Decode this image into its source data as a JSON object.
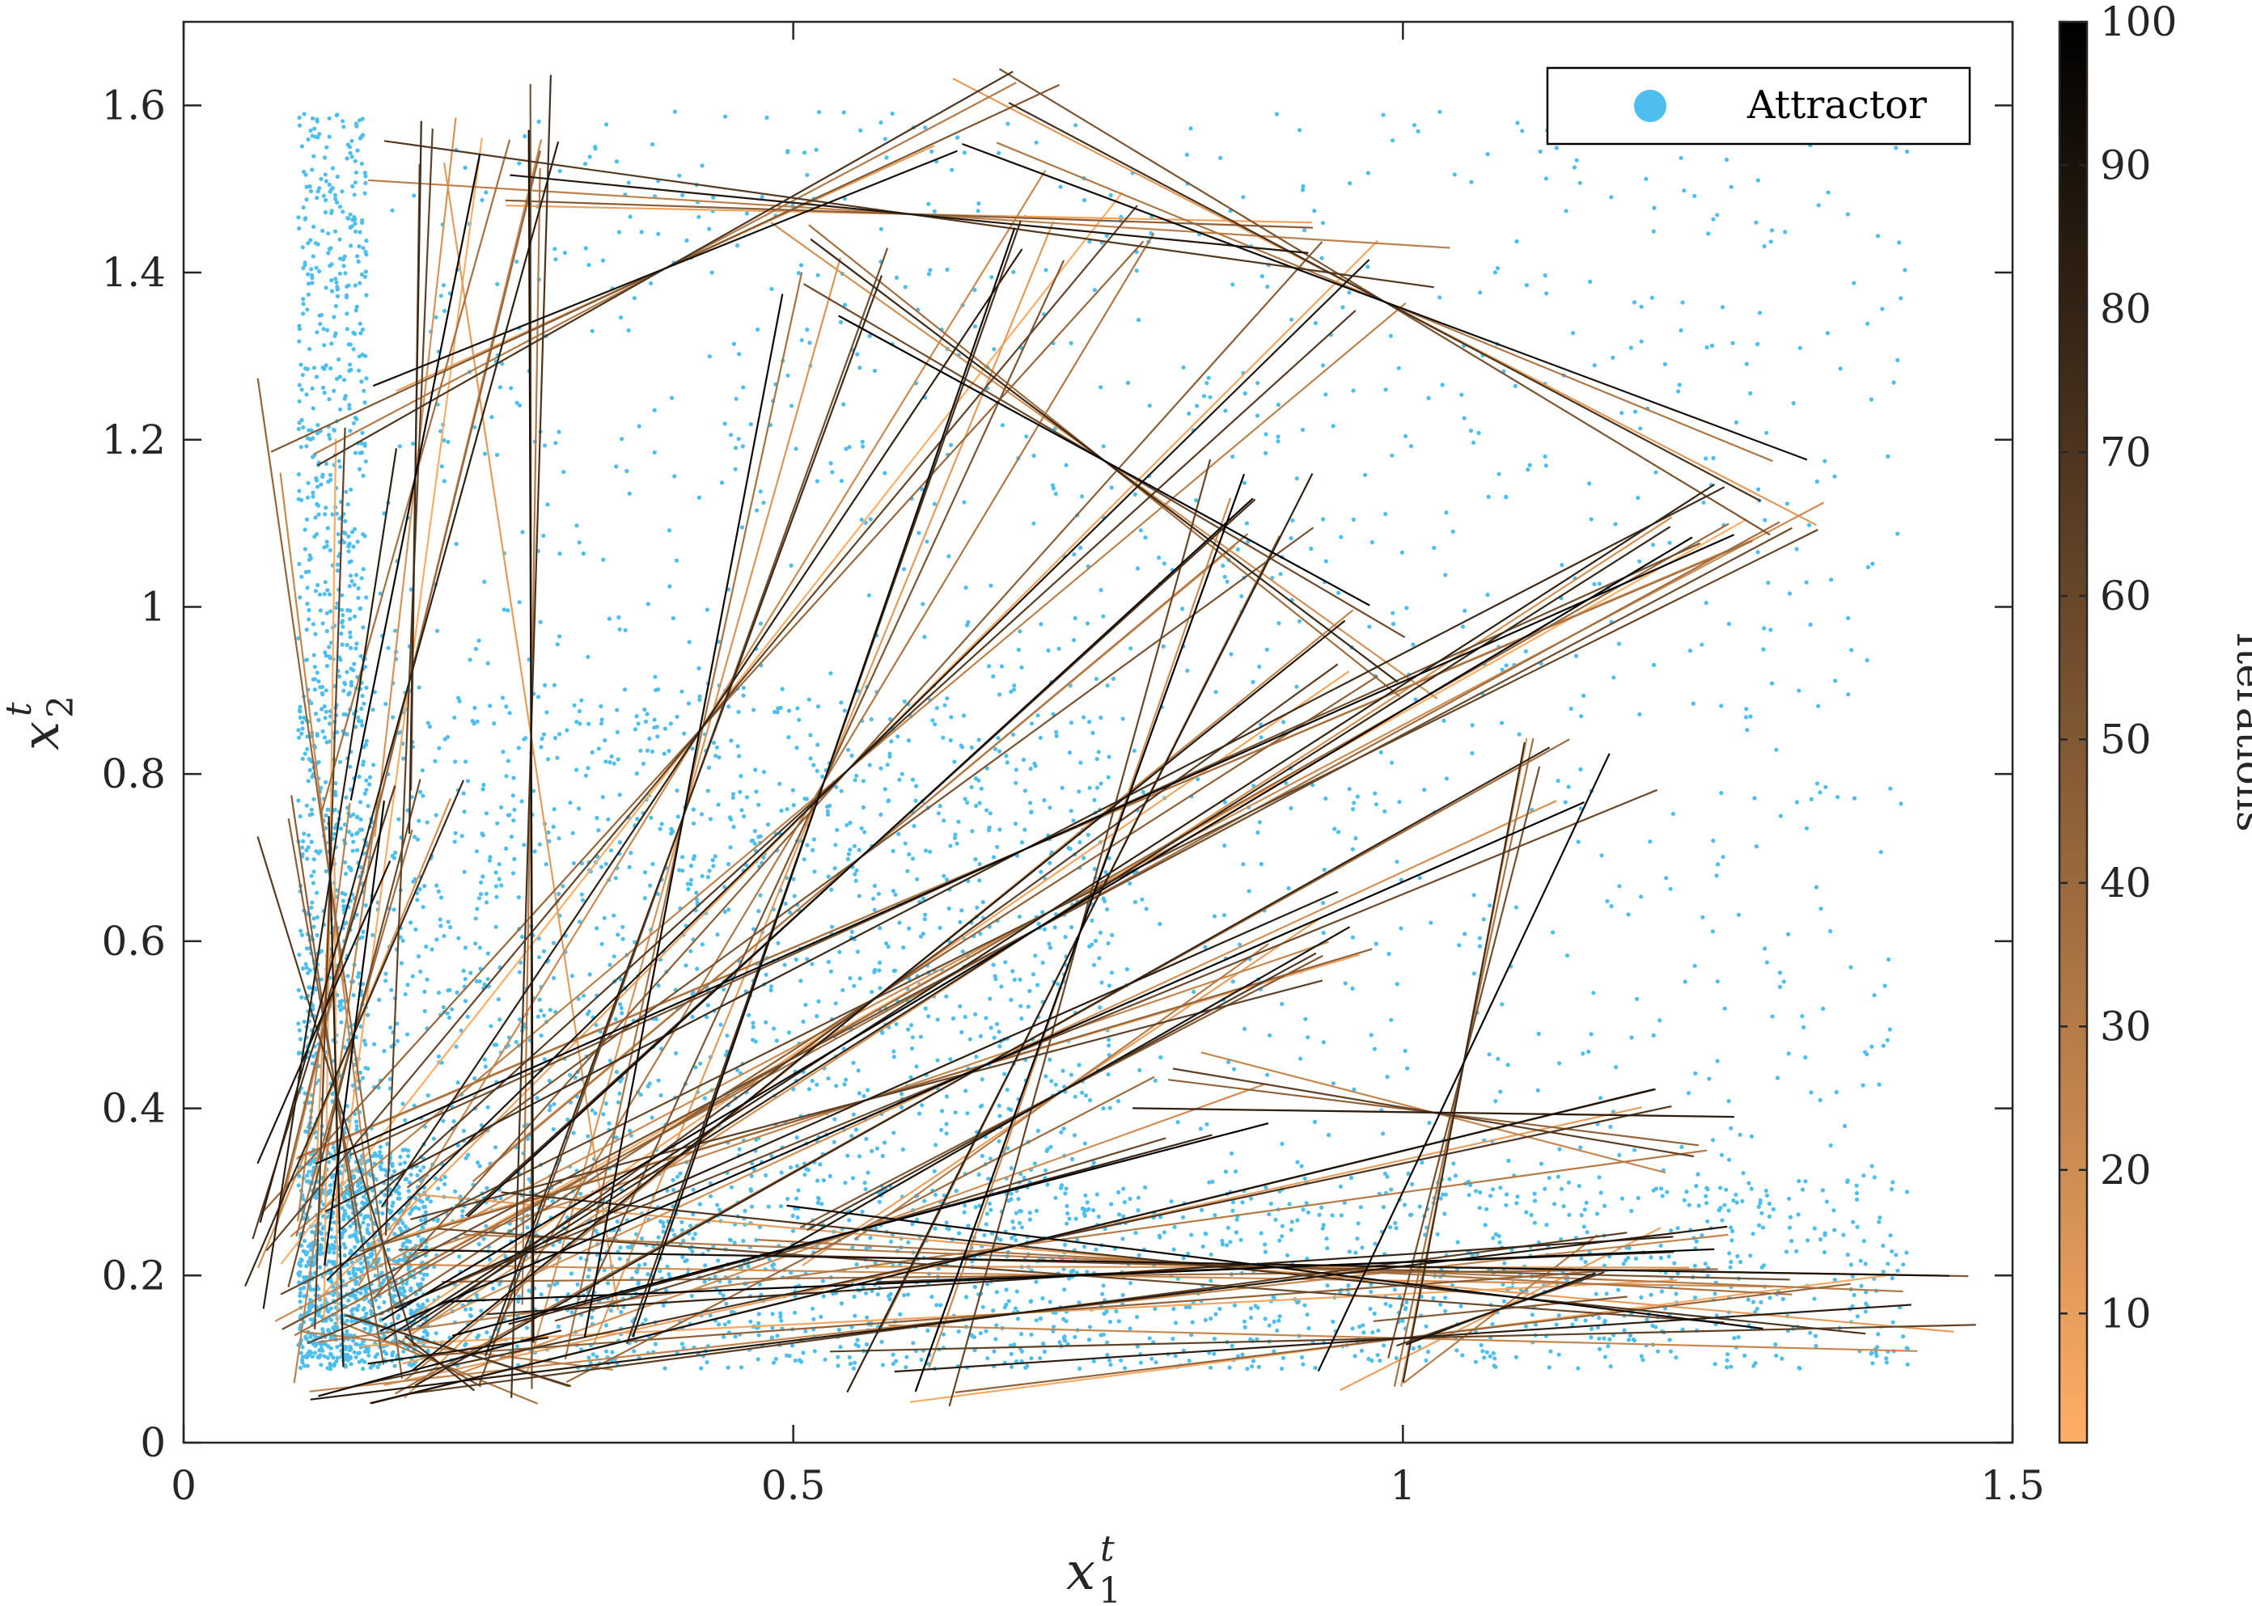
{
  "chart_data": {
    "type": "scatter",
    "title": "",
    "xlabel": {
      "base": "x",
      "sup": "t",
      "sub": "1"
    },
    "ylabel": {
      "base": "x",
      "sup": "t",
      "sub": "2"
    },
    "xlim": [
      0,
      1.5
    ],
    "ylim": [
      0,
      1.7
    ],
    "xticks": [
      0,
      0.5,
      1,
      1.5
    ],
    "xtick_labels": [
      "0",
      "0.5",
      "1",
      "1.5"
    ],
    "yticks": [
      0,
      0.2,
      0.4,
      0.6,
      0.8,
      1,
      1.2,
      1.4,
      1.6
    ],
    "ytick_labels": [
      "0",
      "0.2",
      "0.4",
      "0.6",
      "0.8",
      "1",
      "1.2",
      "1.4",
      "1.6"
    ],
    "grid": false,
    "legend": {
      "position": "top-right",
      "entries": [
        {
          "label": "Attractor",
          "color": "#4DBEEE",
          "marker": "filled-circle"
        }
      ]
    },
    "attractor": {
      "name": "Attractor",
      "color": "#4DBEEE",
      "x_range": [
        0.094,
        1.414
      ],
      "y_range": [
        0.088,
        1.594
      ],
      "dense_regions": [
        {
          "x_range": [
            0.094,
            0.76
          ],
          "y_range": [
            0.088,
            0.91
          ]
        },
        {
          "x_range": [
            0.094,
            0.15
          ],
          "y_range": [
            0.088,
            1.594
          ]
        },
        {
          "x_range": [
            0.094,
            1.414
          ],
          "y_range": [
            0.088,
            0.32
          ]
        }
      ]
    },
    "trajectories": {
      "name": "Iterations",
      "iterations": 100,
      "color_start": "#FFAE66",
      "color_end": "#000000",
      "sample_vertices": [
        [
          0.12,
          0.13
        ],
        [
          0.52,
          1.4
        ],
        [
          0.3,
          0.1
        ],
        [
          1.3,
          1.14
        ],
        [
          0.14,
          0.1
        ],
        [
          0.98,
          1.41
        ],
        [
          0.2,
          0.21
        ],
        [
          0.74,
          1.47
        ],
        [
          0.16,
          0.11
        ],
        [
          1.27,
          1.13
        ],
        [
          0.22,
          0.27
        ],
        [
          1.42,
          0.16
        ],
        [
          0.11,
          0.29
        ],
        [
          1.21,
          0.2
        ],
        [
          0.11,
          0.24
        ],
        [
          1.27,
          0.19
        ],
        [
          0.21,
          1.53
        ],
        [
          0.28,
          0.09
        ],
        [
          0.67,
          1.59
        ],
        [
          0.15,
          0.12
        ],
        [
          0.99,
          0.95
        ],
        [
          0.12,
          1.22
        ],
        [
          0.83,
          0.42
        ],
        [
          0.17,
          0.78
        ],
        [
          0.52,
          0.23
        ],
        [
          0.26,
          1.58
        ],
        [
          0.95,
          0.12
        ],
        [
          0.12,
          0.74
        ],
        [
          0.58,
          0.09
        ],
        [
          0.89,
          1.13
        ],
        [
          0.13,
          0.1
        ],
        [
          1.15,
          0.79
        ],
        [
          0.31,
          0.11
        ],
        [
          0.92,
          0.61
        ],
        [
          0.11,
          0.2
        ],
        [
          1.22,
          0.37
        ]
      ]
    },
    "colorbar": {
      "label": "Iterations",
      "range": [
        1,
        100
      ],
      "ticks": [
        10,
        20,
        30,
        40,
        50,
        60,
        70,
        80,
        90,
        100
      ],
      "tick_labels": [
        "10",
        "20",
        "30",
        "40",
        "50",
        "60",
        "70",
        "80",
        "90",
        "100"
      ]
    }
  }
}
